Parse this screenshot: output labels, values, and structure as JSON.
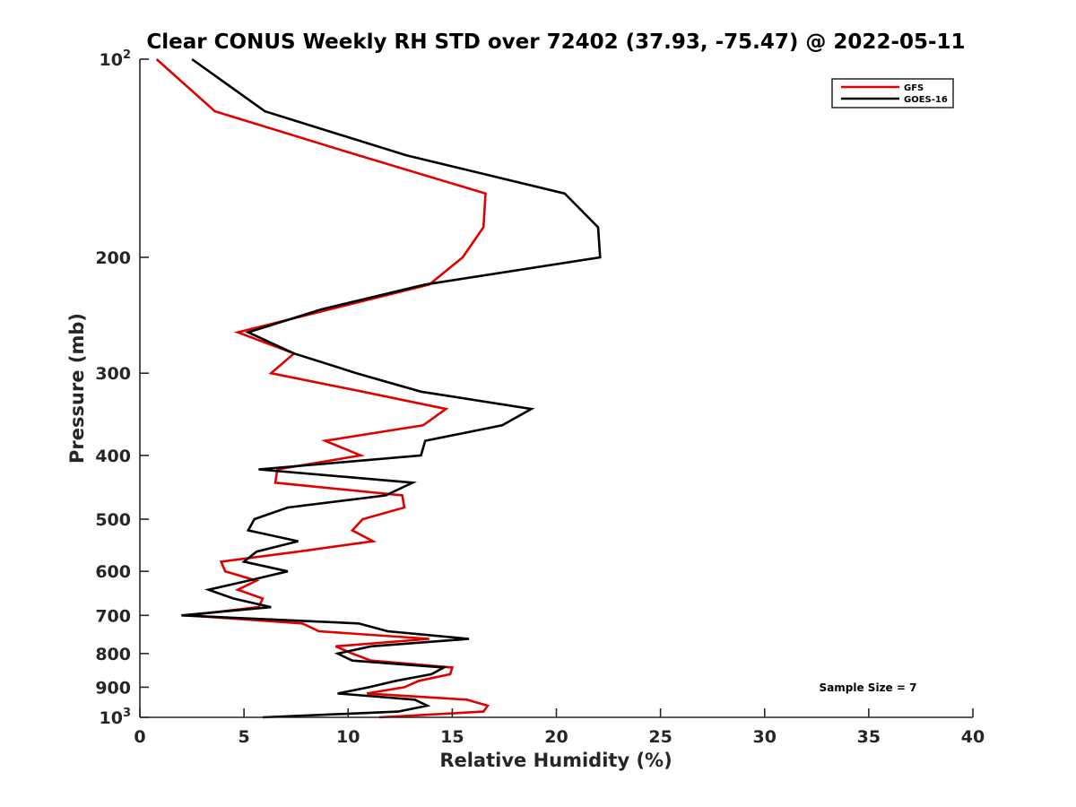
{
  "chart_data": {
    "type": "line",
    "title": "Clear CONUS Weekly RH STD over 72402 (37.93, -75.47) @ 2022-05-11",
    "xlabel": "Relative Humidity (%)",
    "ylabel": "Pressure (mb)",
    "xlim": [
      0,
      40
    ],
    "ylim": [
      100,
      1000
    ],
    "yscale": "log",
    "yaxis_inverted": true,
    "grid": false,
    "legend_position": "top-right",
    "x_ticks": [
      0,
      5,
      10,
      15,
      20,
      25,
      30,
      35,
      40
    ],
    "x_tick_labels": [
      "0",
      "5",
      "10",
      "15",
      "20",
      "25",
      "30",
      "35",
      "40"
    ],
    "y_ticks": [
      {
        "value": 100,
        "base": "10",
        "exp": "2",
        "label": ""
      },
      {
        "value": 200,
        "label": "200"
      },
      {
        "value": 300,
        "label": "300"
      },
      {
        "value": 400,
        "label": "400"
      },
      {
        "value": 500,
        "label": "500"
      },
      {
        "value": 600,
        "label": "600"
      },
      {
        "value": 700,
        "label": "700"
      },
      {
        "value": 800,
        "label": "800"
      },
      {
        "value": 900,
        "label": "900"
      },
      {
        "value": 1000,
        "base": "10",
        "exp": "3",
        "label": ""
      }
    ],
    "pressure": [
      100,
      120,
      140,
      160,
      180,
      200,
      220,
      240,
      260,
      280,
      300,
      320,
      340,
      360,
      380,
      400,
      420,
      440,
      460,
      480,
      500,
      520,
      540,
      560,
      580,
      600,
      620,
      640,
      660,
      680,
      700,
      720,
      740,
      760,
      780,
      800,
      820,
      840,
      860,
      880,
      900,
      920,
      940,
      960,
      980,
      1000
    ],
    "series": [
      {
        "name": "GFS",
        "color": "#e00000",
        "values": [
          0.8,
          3.6,
          10.5,
          16.6,
          16.5,
          15.5,
          13.9,
          9.1,
          4.7,
          7.4,
          6.3,
          10.7,
          14.7,
          13.6,
          8.9,
          10.6,
          6.6,
          6.5,
          12.6,
          12.7,
          10.7,
          10.2,
          11.2,
          7.6,
          3.9,
          4.1,
          5.6,
          4.7,
          5.9,
          5.7,
          2.3,
          7.8,
          8.6,
          13.9,
          9.4,
          10.2,
          11.1,
          15.0,
          14.9,
          13.4,
          12.7,
          10.9,
          15.7,
          16.7,
          16.5,
          11.5
        ]
      },
      {
        "name": "GOES-16",
        "color": "#000000",
        "values": [
          2.5,
          6.0,
          12.8,
          20.4,
          22.0,
          22.1,
          13.7,
          8.7,
          5.2,
          7.4,
          10.4,
          13.5,
          18.8,
          17.4,
          13.7,
          13.5,
          5.7,
          13.1,
          11.8,
          7.1,
          5.5,
          5.2,
          7.6,
          5.6,
          5.0,
          7.1,
          5.2,
          3.3,
          4.5,
          6.3,
          2.0,
          10.5,
          11.9,
          15.8,
          11.1,
          9.5,
          10.2,
          14.6,
          14.0,
          12.3,
          11.0,
          9.5,
          13.2,
          13.8,
          12.4,
          5.9
        ]
      }
    ],
    "annotations": [
      {
        "text": "Sample Size = 7",
        "position": "bottom-right"
      }
    ]
  }
}
